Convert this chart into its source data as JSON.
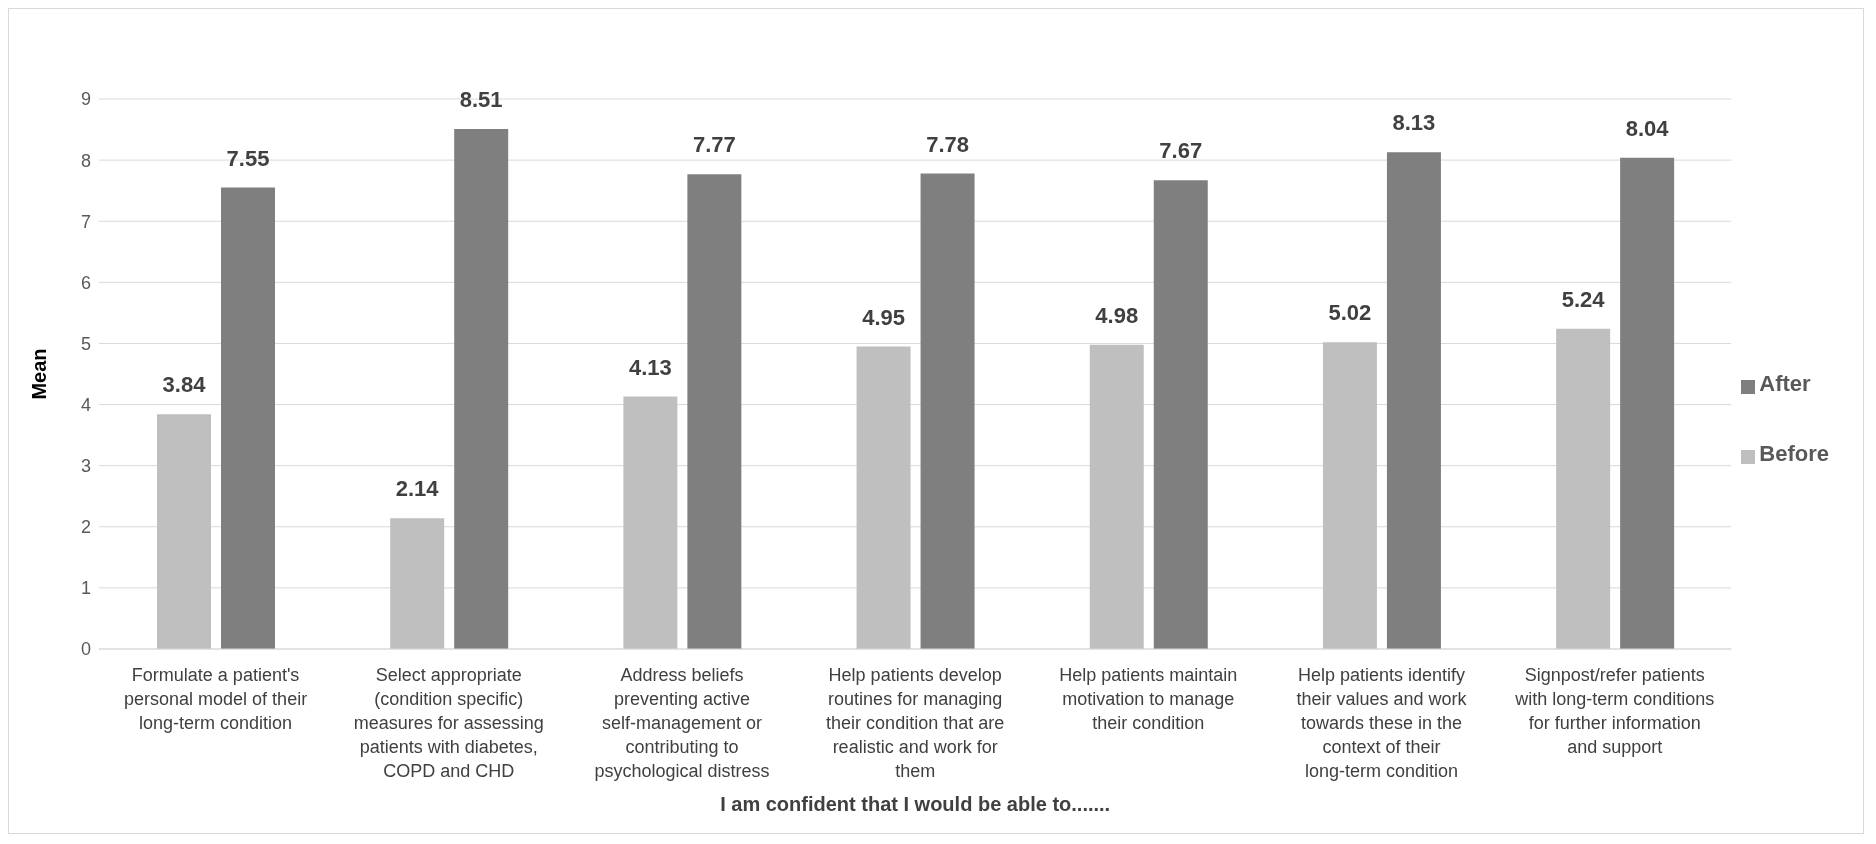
{
  "chart_data": {
    "type": "bar",
    "xlabel": "I am confident that I would be able to.......",
    "ylabel": "Mean",
    "categories": [
      "Formulate a patient's personal model of their long-term condition",
      "Select appropriate (condition specific) measures for assessing patients with diabetes, COPD and CHD",
      "Address beliefs preventing active self-management or contributing to psychological distress",
      "Help patients develop routines for managing their condition that are realistic and work for them",
      "Help patients maintain motivation to manage their condition",
      "Help patients identify their values and work towards these in the context of their long-term condition",
      "Signpost/refer patients with long-term conditions for further information and support"
    ],
    "series": [
      {
        "name": "Before",
        "color": "#bfbfbf",
        "values": [
          3.84,
          2.14,
          4.13,
          4.95,
          4.98,
          5.02,
          5.24
        ]
      },
      {
        "name": "After",
        "color": "#7f7f7f",
        "values": [
          7.55,
          8.51,
          7.77,
          7.78,
          7.67,
          8.13,
          8.04
        ]
      }
    ],
    "ylim": [
      0,
      9
    ],
    "yticks": [
      0,
      1,
      2,
      3,
      4,
      5,
      6,
      7,
      8,
      9
    ],
    "grid": "y",
    "legend": "right",
    "data_labels": true
  }
}
